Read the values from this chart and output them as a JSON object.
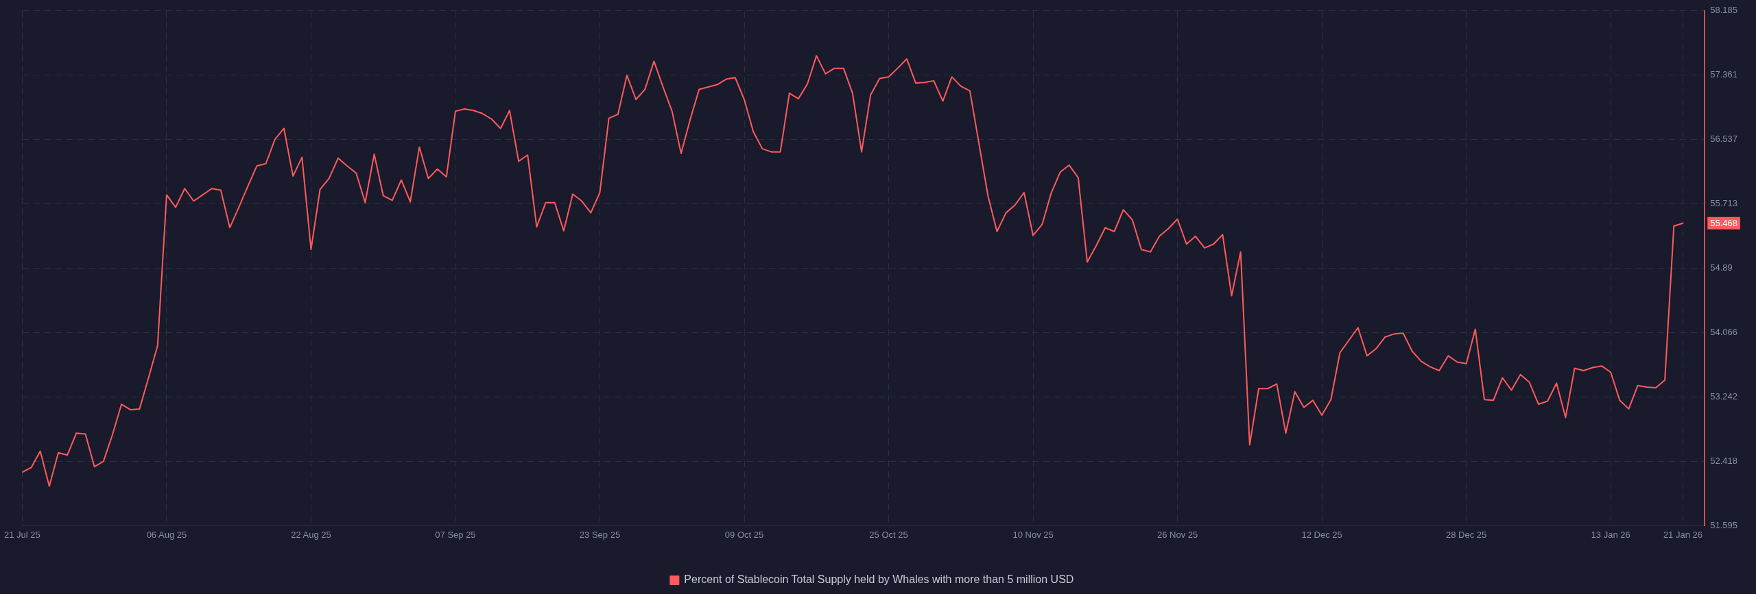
{
  "chart_data": {
    "type": "line",
    "x": [
      "2025-07-21",
      "2025-07-22",
      "2025-07-23",
      "2025-07-24",
      "2025-07-25",
      "2025-07-26",
      "2025-07-27",
      "2025-07-28",
      "2025-07-29",
      "2025-07-30",
      "2025-07-31",
      "2025-08-01",
      "2025-08-02",
      "2025-08-03",
      "2025-08-04",
      "2025-08-05",
      "2025-08-06",
      "2025-08-07",
      "2025-08-08",
      "2025-08-09",
      "2025-08-10",
      "2025-08-11",
      "2025-08-12",
      "2025-08-13",
      "2025-08-14",
      "2025-08-15",
      "2025-08-16",
      "2025-08-17",
      "2025-08-18",
      "2025-08-19",
      "2025-08-20",
      "2025-08-21",
      "2025-08-22",
      "2025-08-23",
      "2025-08-24",
      "2025-08-25",
      "2025-08-26",
      "2025-08-27",
      "2025-08-28",
      "2025-08-29",
      "2025-08-30",
      "2025-08-31",
      "2025-09-01",
      "2025-09-02",
      "2025-09-03",
      "2025-09-04",
      "2025-09-05",
      "2025-09-06",
      "2025-09-07",
      "2025-09-08",
      "2025-09-09",
      "2025-09-10",
      "2025-09-11",
      "2025-09-12",
      "2025-09-13",
      "2025-09-14",
      "2025-09-15",
      "2025-09-16",
      "2025-09-17",
      "2025-09-18",
      "2025-09-19",
      "2025-09-20",
      "2025-09-21",
      "2025-09-22",
      "2025-09-23",
      "2025-09-24",
      "2025-09-25",
      "2025-09-26",
      "2025-09-27",
      "2025-09-28",
      "2025-09-29",
      "2025-09-30",
      "2025-10-01",
      "2025-10-02",
      "2025-10-03",
      "2025-10-04",
      "2025-10-05",
      "2025-10-06",
      "2025-10-07",
      "2025-10-08",
      "2025-10-09",
      "2025-10-10",
      "2025-10-11",
      "2025-10-12",
      "2025-10-13",
      "2025-10-14",
      "2025-10-15",
      "2025-10-16",
      "2025-10-17",
      "2025-10-18",
      "2025-10-19",
      "2025-10-20",
      "2025-10-21",
      "2025-10-22",
      "2025-10-23",
      "2025-10-24",
      "2025-10-25",
      "2025-10-26",
      "2025-10-27",
      "2025-10-28",
      "2025-10-29",
      "2025-10-30",
      "2025-10-31",
      "2025-11-01",
      "2025-11-02",
      "2025-11-03",
      "2025-11-04",
      "2025-11-05",
      "2025-11-06",
      "2025-11-07",
      "2025-11-08",
      "2025-11-09",
      "2025-11-10",
      "2025-11-11",
      "2025-11-12",
      "2025-11-13",
      "2025-11-14",
      "2025-11-15",
      "2025-11-16",
      "2025-11-17",
      "2025-11-18",
      "2025-11-19",
      "2025-11-20",
      "2025-11-21",
      "2025-11-22",
      "2025-11-23",
      "2025-11-24",
      "2025-11-25",
      "2025-11-26",
      "2025-11-27",
      "2025-11-28",
      "2025-11-29",
      "2025-11-30",
      "2025-12-01",
      "2025-12-02",
      "2025-12-03",
      "2025-12-04",
      "2025-12-05",
      "2025-12-06",
      "2025-12-07",
      "2025-12-08",
      "2025-12-09",
      "2025-12-10",
      "2025-12-11",
      "2025-12-12",
      "2025-12-13",
      "2025-12-14",
      "2025-12-15",
      "2025-12-16",
      "2025-12-17",
      "2025-12-18",
      "2025-12-19",
      "2025-12-20",
      "2025-12-21",
      "2025-12-22",
      "2025-12-23",
      "2025-12-24",
      "2025-12-25",
      "2025-12-26",
      "2025-12-27",
      "2025-12-28",
      "2025-12-29",
      "2025-12-30",
      "2025-12-31",
      "2026-01-01",
      "2026-01-02",
      "2026-01-03",
      "2026-01-04",
      "2026-01-05",
      "2026-01-06",
      "2026-01-07",
      "2026-01-08",
      "2026-01-09",
      "2026-01-10",
      "2026-01-11",
      "2026-01-12",
      "2026-01-13",
      "2026-01-14",
      "2026-01-15",
      "2026-01-16",
      "2026-01-17",
      "2026-01-18",
      "2026-01-19",
      "2026-01-20",
      "2026-01-21"
    ],
    "series": [
      {
        "name": "Percent of Stablecoin Total Supply held by Whales with more than 5 million USD",
        "color": "#ff5b5b",
        "values": [
          52.28,
          52.34,
          52.55,
          52.1,
          52.53,
          52.5,
          52.78,
          52.77,
          52.35,
          52.42,
          52.76,
          53.15,
          53.08,
          53.09,
          53.49,
          53.9,
          55.83,
          55.67,
          55.91,
          55.75,
          55.83,
          55.91,
          55.89,
          55.41,
          55.67,
          55.94,
          56.2,
          56.23,
          56.54,
          56.68,
          56.07,
          56.31,
          55.13,
          55.9,
          56.04,
          56.3,
          56.2,
          56.11,
          55.73,
          56.35,
          55.82,
          55.76,
          56.02,
          55.74,
          56.44,
          56.04,
          56.16,
          56.06,
          56.9,
          56.93,
          56.91,
          56.87,
          56.8,
          56.68,
          56.91,
          56.26,
          56.34,
          55.42,
          55.73,
          55.73,
          55.37,
          55.84,
          55.75,
          55.6,
          55.86,
          56.81,
          56.86,
          57.36,
          57.05,
          57.18,
          57.54,
          57.21,
          56.9,
          56.36,
          56.79,
          57.18,
          57.21,
          57.24,
          57.31,
          57.33,
          57.05,
          56.64,
          56.42,
          56.38,
          56.38,
          57.13,
          57.06,
          57.25,
          57.61,
          57.38,
          57.45,
          57.45,
          57.13,
          56.38,
          57.11,
          57.32,
          57.34,
          57.45,
          57.57,
          57.26,
          57.27,
          57.29,
          57.03,
          57.34,
          57.22,
          57.16,
          56.49,
          55.82,
          55.36,
          55.6,
          55.7,
          55.86,
          55.31,
          55.45,
          55.85,
          56.12,
          56.21,
          56.05,
          54.97,
          55.18,
          55.41,
          55.36,
          55.64,
          55.51,
          55.13,
          55.1,
          55.3,
          55.4,
          55.52,
          55.2,
          55.3,
          55.15,
          55.2,
          55.32,
          54.54,
          55.1,
          52.63,
          53.35,
          53.35,
          53.41,
          52.78,
          53.31,
          53.11,
          53.2,
          53.01,
          53.21,
          53.81,
          53.97,
          54.13,
          53.77,
          53.86,
          54.01,
          54.05,
          54.06,
          53.83,
          53.7,
          53.63,
          53.58,
          53.77,
          53.69,
          53.67,
          54.11,
          53.21,
          53.2,
          53.49,
          53.33,
          53.53,
          53.43,
          53.15,
          53.19,
          53.42,
          52.98,
          53.61,
          53.58,
          53.62,
          53.64,
          53.56,
          53.2,
          53.09,
          53.39,
          53.37,
          53.36,
          53.46,
          55.43,
          55.468
        ]
      }
    ],
    "xlim": [
      "2025-07-21",
      "2026-01-23T10:00"
    ],
    "xticks": [
      {
        "value": "2025-07-21",
        "label": "21 Jul 25"
      },
      {
        "value": "2025-08-06",
        "label": "06 Aug 25"
      },
      {
        "value": "2025-08-22",
        "label": "22 Aug 25"
      },
      {
        "value": "2025-09-07",
        "label": "07 Sep 25"
      },
      {
        "value": "2025-09-23",
        "label": "23 Sep 25"
      },
      {
        "value": "2025-10-09",
        "label": "09 Oct 25"
      },
      {
        "value": "2025-10-25",
        "label": "25 Oct 25"
      },
      {
        "value": "2025-11-10",
        "label": "10 Nov 25"
      },
      {
        "value": "2025-11-26",
        "label": "26 Nov 25"
      },
      {
        "value": "2025-12-12",
        "label": "12 Dec 25"
      },
      {
        "value": "2025-12-28",
        "label": "28 Dec 25"
      },
      {
        "value": "2026-01-13",
        "label": "13 Jan 26"
      },
      {
        "value": "2026-01-21",
        "label": "21 Jan 26"
      }
    ],
    "ylim": [
      51.595,
      58.185
    ],
    "yticks": [
      51.595,
      52.418,
      53.242,
      54.066,
      54.89,
      55.713,
      56.537,
      57.361,
      58.185
    ],
    "grid": true,
    "legend": "bottom",
    "marker": "none",
    "line_style": "solid",
    "annotations": [
      "55.468"
    ]
  }
}
